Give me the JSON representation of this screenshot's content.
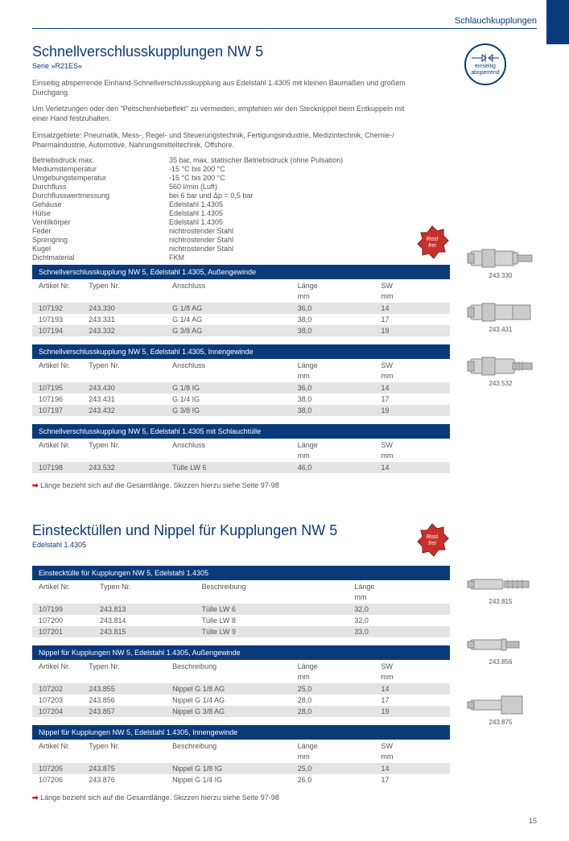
{
  "header": {
    "category": "Schlauchkupplungen"
  },
  "section1": {
    "title": "Schnellverschlusskupplungen NW 5",
    "subtitle": "Serie »R21ES«",
    "desc1": "Einseitig absperrende Einhand-Schnellverschlusskupplung aus Edelstahl 1.4305 mit kleinen Baumaßen und großem Durchgang.",
    "desc2": "Um Verletzungen oder den \"Peitschenhiebeffekt\" zu vermeiden, empfehlen wir den Stecknippel beim Entkuppeln mit einer Hand festzuhalten.",
    "desc3": "Einsatzgebiete: Pneumatik, Mess-, Regel- und Steuerungstechnik, Fertigungsindustrie, Medizintechnik, Chemie-/ Pharmaindustrie, Automotive, Nahrungsmitteltechnik, Offshore.",
    "icon_line1": "einseitig",
    "icon_line2": "absperrend",
    "specs": [
      [
        "Betriebsdruck max.",
        "35 bar, max. statischer Betriebsdruck (ohne Pulsation)"
      ],
      [
        "Mediumstemperatur",
        "-15 °C bis 200 °C"
      ],
      [
        "Umgebungstemperatur",
        "-15 °C bis 200 °C"
      ],
      [
        "Durchfluss",
        "560 l/min (Luft)"
      ],
      [
        "Durchflusswertmessung",
        "bei 6 bar und Δp = 0,5 bar"
      ],
      [
        "Gehäuse",
        "Edelstahl 1.4305"
      ],
      [
        "Hülse",
        "Edelstahl 1.4305"
      ],
      [
        "Ventilkörper",
        "Edelstahl 1.4305"
      ],
      [
        "Feder",
        "nichtrostender Stahl"
      ],
      [
        "Sprengring",
        "nichtrostender Stahl"
      ],
      [
        "Kugel",
        "nichtrostender Stahl"
      ],
      [
        "Dichtmaterial",
        "FKM"
      ]
    ],
    "badge_text": "Rost frei",
    "columns5": {
      "c1": "Artikel Nr.",
      "c2": "Typen Nr.",
      "c3": "Anschluss",
      "c4": "Länge",
      "c5": "SW",
      "u4": "mm",
      "u5": "mm"
    },
    "tables": [
      {
        "title": "Schnellverschlusskupplung NW 5, Edelstahl 1.4305, Außengewinde",
        "rows": [
          [
            "107192",
            "243.330",
            "G 1/8 AG",
            "36,0",
            "14"
          ],
          [
            "107193",
            "243.331",
            "G 1/4 AG",
            "38,0",
            "17"
          ],
          [
            "107194",
            "243.332",
            "G 3/8 AG",
            "38,0",
            "19"
          ]
        ],
        "img_label": "243.330"
      },
      {
        "title": "Schnellverschlusskupplung NW 5, Edelstahl 1.4305, Innengewinde",
        "rows": [
          [
            "107195",
            "243.430",
            "G 1/8 IG",
            "36,0",
            "14"
          ],
          [
            "107196",
            "243.431",
            "G 1/4 IG",
            "38,0",
            "17"
          ],
          [
            "107197",
            "243.432",
            "G 3/8 IG",
            "38,0",
            "19"
          ]
        ],
        "img_label": "243.431"
      },
      {
        "title": "Schnellverschlusskupplung NW 5, Edelstahl 1.4305 mit Schlauchtülle",
        "rows": [
          [
            "107198",
            "243.532",
            "Tülle LW 6",
            "46,0",
            "14"
          ]
        ],
        "img_label": "243.532"
      }
    ],
    "note": "Länge bezieht sich auf die Gesamtlänge. Skizzen hierzu siehe Seite 97-98"
  },
  "section2": {
    "title": "Einstecktüllen und Nippel für Kupplungen NW 5",
    "subtitle": "Edelstahl 1.4305",
    "badge_text": "Rost frei",
    "columns4": {
      "c1": "Artikel Nr.",
      "c2": "Typen Nr.",
      "c3": "Beschreibung",
      "c4": "Länge",
      "u4": "mm"
    },
    "columns5": {
      "c1": "Artikel Nr.",
      "c2": "Typen Nr.",
      "c3": "Beschreibung",
      "c4": "Länge",
      "c5": "SW",
      "u4": "mm",
      "u5": "mm"
    },
    "tables": [
      {
        "title": "Einstecktülle für Kupplungen NW 5, Edelstahl 1.4305",
        "cols": 4,
        "rows": [
          [
            "107199",
            "243.813",
            "Tülle LW 6",
            "32,0"
          ],
          [
            "107200",
            "243.814",
            "Tülle LW 8",
            "32,0"
          ],
          [
            "107201",
            "243.815",
            "Tülle LW 9",
            "33,0"
          ]
        ],
        "img_label": "243.815"
      },
      {
        "title": "Nippel für Kupplungen NW 5, Edelstahl 1.4305, Außengewinde",
        "cols": 5,
        "rows": [
          [
            "107202",
            "243.855",
            "Nippel G 1/8 AG",
            "25,0",
            "14"
          ],
          [
            "107203",
            "243.856",
            "Nippel G 1/4 AG",
            "28,0",
            "17"
          ],
          [
            "107204",
            "243.857",
            "Nippel G 3/8 AG",
            "28,0",
            "19"
          ]
        ],
        "img_label": "243.856"
      },
      {
        "title": "Nippel für Kupplungen NW 5, Edelstahl 1.4305, Innengewinde",
        "cols": 5,
        "rows": [
          [
            "107205",
            "243.875",
            "Nippel G 1/8 IG",
            "25,0",
            "14"
          ],
          [
            "107206",
            "243.876",
            "Nippel G 1/4 IG",
            "26,0",
            "17"
          ]
        ],
        "img_label": "243.875"
      }
    ],
    "note": "Länge bezieht sich auf die Gesamtlänge. Skizzen hierzu siehe Seite 97-98"
  },
  "page_number": "15",
  "colors": {
    "primary": "#0a3a7a",
    "stripe": "#e4e4e4",
    "text": "#555555",
    "red": "#cc0000"
  }
}
